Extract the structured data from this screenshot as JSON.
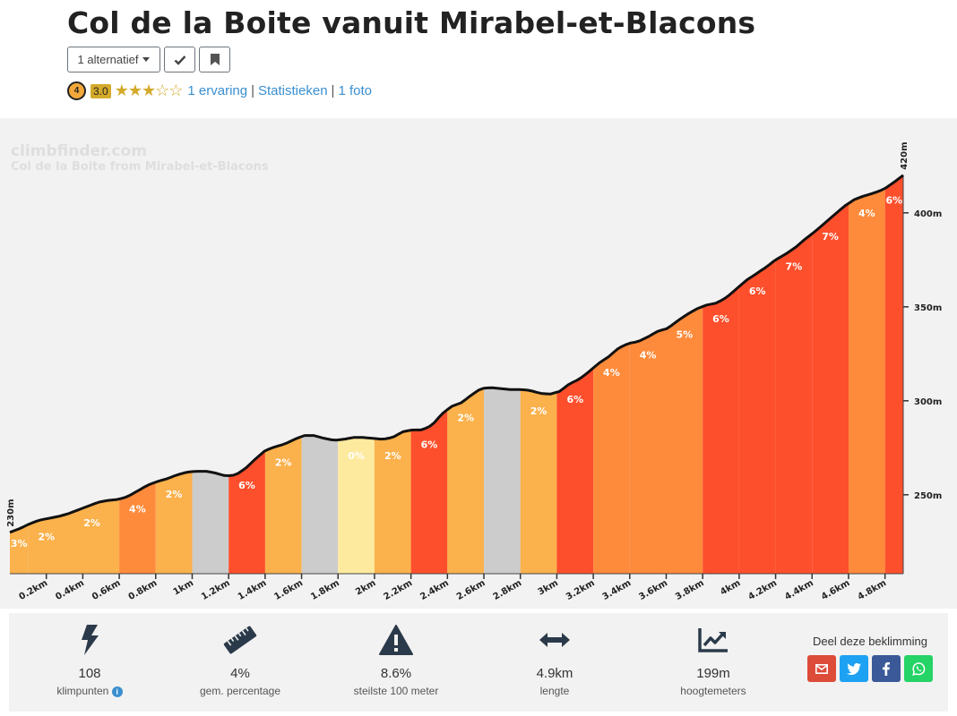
{
  "header": {
    "title": "Col de la Boite vanuit Mirabel-et-Blacons",
    "alternatives_label": "1 alternatief",
    "difficulty": "4",
    "score": "3.0",
    "stars": 3,
    "stars_max": 5,
    "links": [
      "1 ervaring",
      "Statistieken",
      "1 foto"
    ]
  },
  "chart_data": {
    "type": "area",
    "title": "Col de la Boite from Mirabel-et-Blacons",
    "watermark": "climbfinder.com",
    "x_unit": "km",
    "xlim": [
      0,
      4.9
    ],
    "ylim": [
      208,
      420
    ],
    "start_label": "230m",
    "end_label": "420m",
    "y_ticks": [
      {
        "value": 250,
        "label": "250m"
      },
      {
        "value": 300,
        "label": "300m"
      },
      {
        "value": 350,
        "label": "350m"
      },
      {
        "value": 400,
        "label": "400m"
      }
    ],
    "x_ticks": [
      {
        "value": 0.2,
        "label": "0.2km"
      },
      {
        "value": 0.4,
        "label": "0.4km"
      },
      {
        "value": 0.6,
        "label": "0.6km"
      },
      {
        "value": 0.8,
        "label": "0.8km"
      },
      {
        "value": 1.0,
        "label": "1km"
      },
      {
        "value": 1.2,
        "label": "1.2km"
      },
      {
        "value": 1.4,
        "label": "1.4km"
      },
      {
        "value": 1.6,
        "label": "1.6km"
      },
      {
        "value": 1.8,
        "label": "1.8km"
      },
      {
        "value": 2.0,
        "label": "2km"
      },
      {
        "value": 2.2,
        "label": "2.2km"
      },
      {
        "value": 2.4,
        "label": "2.4km"
      },
      {
        "value": 2.6,
        "label": "2.6km"
      },
      {
        "value": 2.8,
        "label": "2.8km"
      },
      {
        "value": 3.0,
        "label": "3km"
      },
      {
        "value": 3.2,
        "label": "3.2km"
      },
      {
        "value": 3.4,
        "label": "3.4km"
      },
      {
        "value": 3.6,
        "label": "3.6km"
      },
      {
        "value": 3.8,
        "label": "3.8km"
      },
      {
        "value": 4.0,
        "label": "4km"
      },
      {
        "value": 4.2,
        "label": "4.2km"
      },
      {
        "value": 4.4,
        "label": "4.4km"
      },
      {
        "value": 4.6,
        "label": "4.6km"
      },
      {
        "value": 4.8,
        "label": "4.8km"
      }
    ],
    "profile": [
      [
        0.0,
        230
      ],
      [
        0.05,
        232
      ],
      [
        0.1,
        234.5
      ],
      [
        0.15,
        236.5
      ],
      [
        0.2,
        237.5
      ],
      [
        0.25,
        238.5
      ],
      [
        0.3,
        240
      ],
      [
        0.35,
        242
      ],
      [
        0.4,
        244
      ],
      [
        0.45,
        246
      ],
      [
        0.5,
        247
      ],
      [
        0.55,
        247.5
      ],
      [
        0.6,
        249
      ],
      [
        0.65,
        252
      ],
      [
        0.7,
        255
      ],
      [
        0.75,
        257
      ],
      [
        0.8,
        258.5
      ],
      [
        0.85,
        260.5
      ],
      [
        0.9,
        262
      ],
      [
        0.95,
        262.5
      ],
      [
        1.0,
        262.5
      ],
      [
        1.05,
        261.5
      ],
      [
        1.1,
        260
      ],
      [
        1.15,
        260.5
      ],
      [
        1.2,
        264
      ],
      [
        1.25,
        269
      ],
      [
        1.3,
        273.5
      ],
      [
        1.35,
        275.5
      ],
      [
        1.4,
        277
      ],
      [
        1.45,
        279.5
      ],
      [
        1.5,
        281.5
      ],
      [
        1.55,
        281.5
      ],
      [
        1.6,
        280
      ],
      [
        1.65,
        279
      ],
      [
        1.7,
        279.5
      ],
      [
        1.75,
        280.5
      ],
      [
        1.8,
        280.5
      ],
      [
        1.85,
        280
      ],
      [
        1.9,
        279.5
      ],
      [
        1.95,
        280.5
      ],
      [
        2.0,
        283.5
      ],
      [
        2.05,
        284.5
      ],
      [
        2.1,
        284.5
      ],
      [
        2.15,
        287
      ],
      [
        2.2,
        293
      ],
      [
        2.25,
        297
      ],
      [
        2.3,
        299
      ],
      [
        2.35,
        303
      ],
      [
        2.4,
        306.5
      ],
      [
        2.45,
        307
      ],
      [
        2.5,
        306.5
      ],
      [
        2.55,
        306
      ],
      [
        2.6,
        306
      ],
      [
        2.65,
        305.5
      ],
      [
        2.7,
        304
      ],
      [
        2.75,
        303.5
      ],
      [
        2.8,
        305
      ],
      [
        2.85,
        309
      ],
      [
        2.9,
        311.5
      ],
      [
        2.95,
        315.5
      ],
      [
        3.0,
        320
      ],
      [
        3.05,
        323.5
      ],
      [
        3.1,
        328
      ],
      [
        3.15,
        330.5
      ],
      [
        3.2,
        331.5
      ],
      [
        3.25,
        334
      ],
      [
        3.3,
        337
      ],
      [
        3.35,
        338.5
      ],
      [
        3.4,
        342.5
      ],
      [
        3.45,
        346
      ],
      [
        3.5,
        349
      ],
      [
        3.55,
        351
      ],
      [
        3.6,
        352
      ],
      [
        3.65,
        355
      ],
      [
        3.7,
        359.5
      ],
      [
        3.75,
        364
      ],
      [
        3.8,
        367.5
      ],
      [
        3.85,
        371
      ],
      [
        3.9,
        375
      ],
      [
        3.95,
        378
      ],
      [
        4.0,
        381.5
      ],
      [
        4.05,
        386
      ],
      [
        4.1,
        390
      ],
      [
        4.15,
        394.5
      ],
      [
        4.2,
        399
      ],
      [
        4.25,
        403.5
      ],
      [
        4.3,
        407
      ],
      [
        4.35,
        409
      ],
      [
        4.4,
        410.5
      ],
      [
        4.45,
        412.5
      ],
      [
        4.5,
        416
      ],
      [
        4.55,
        420
      ]
    ],
    "segments": [
      {
        "from": 0.0,
        "to": 0.1,
        "grade": "3%",
        "color": "#fbb14c"
      },
      {
        "from": 0.1,
        "to": 0.3,
        "grade": "2%",
        "color": "#fbb14c"
      },
      {
        "from": 0.3,
        "to": 0.6,
        "grade": "2%",
        "color": "#fbb14c"
      },
      {
        "from": 0.6,
        "to": 0.8,
        "grade": "4%",
        "color": "#fe8b3b"
      },
      {
        "from": 0.8,
        "to": 1.0,
        "grade": "2%",
        "color": "#fbb14c"
      },
      {
        "from": 1.0,
        "to": 1.2,
        "grade": "",
        "color": "#cccccc"
      },
      {
        "from": 1.2,
        "to": 1.4,
        "grade": "6%",
        "color": "#fe4f2c"
      },
      {
        "from": 1.4,
        "to": 1.6,
        "grade": "2%",
        "color": "#fbb14c"
      },
      {
        "from": 1.6,
        "to": 1.8,
        "grade": "",
        "color": "#cccccc"
      },
      {
        "from": 1.8,
        "to": 2.0,
        "grade": "0%",
        "color": "#feea9e"
      },
      {
        "from": 2.0,
        "to": 2.2,
        "grade": "2%",
        "color": "#fbb14c"
      },
      {
        "from": 2.2,
        "to": 2.4,
        "grade": "6%",
        "color": "#fe4f2c"
      },
      {
        "from": 2.4,
        "to": 2.6,
        "grade": "2%",
        "color": "#fbb14c"
      },
      {
        "from": 2.6,
        "to": 2.8,
        "grade": "",
        "color": "#cccccc"
      },
      {
        "from": 2.8,
        "to": 3.0,
        "grade": "2%",
        "color": "#fbb14c"
      },
      {
        "from": 3.0,
        "to": 3.2,
        "grade": "6%",
        "color": "#fe4f2c"
      },
      {
        "from": 3.2,
        "to": 3.4,
        "grade": "4%",
        "color": "#fe8b3b"
      },
      {
        "from": 3.4,
        "to": 3.6,
        "grade": "4%",
        "color": "#fe8b3b"
      },
      {
        "from": 3.6,
        "to": 3.8,
        "grade": "5%",
        "color": "#fe8b3b"
      },
      {
        "from": 3.8,
        "to": 4.0,
        "grade": "6%",
        "color": "#fe4f2c"
      },
      {
        "from": 4.0,
        "to": 4.2,
        "grade": "6%",
        "color": "#fe4f2c"
      },
      {
        "from": 4.2,
        "to": 4.4,
        "grade": "7%",
        "color": "#fe4f2c"
      },
      {
        "from": 4.4,
        "to": 4.6,
        "grade": "7%",
        "color": "#fe4f2c"
      },
      {
        "from": 4.6,
        "to": 4.8,
        "grade": "4%",
        "color": "#fe8b3b"
      },
      {
        "from": 4.8,
        "to": 4.9,
        "grade": "6%",
        "color": "#fe4f2c"
      }
    ]
  },
  "stats": {
    "points": {
      "value": "108",
      "label": "klimpunten",
      "icon": "lightning-icon"
    },
    "avg": {
      "value": "4%",
      "label": "gem. percentage",
      "icon": "ruler-icon"
    },
    "steepest": {
      "value": "8.6%",
      "label": "steilste 100 meter",
      "icon": "warning-icon"
    },
    "length": {
      "value": "4.9km",
      "label": "lengte",
      "icon": "arrows-horizontal-icon"
    },
    "elevation": {
      "value": "199m",
      "label": "hoogtemeters",
      "icon": "chart-line-icon"
    }
  },
  "share": {
    "label": "Deel deze beklimming",
    "colors": {
      "email": "#dd4b39",
      "twitter": "#1da1f2",
      "facebook": "#3b5998",
      "whatsapp": "#25d366"
    }
  }
}
